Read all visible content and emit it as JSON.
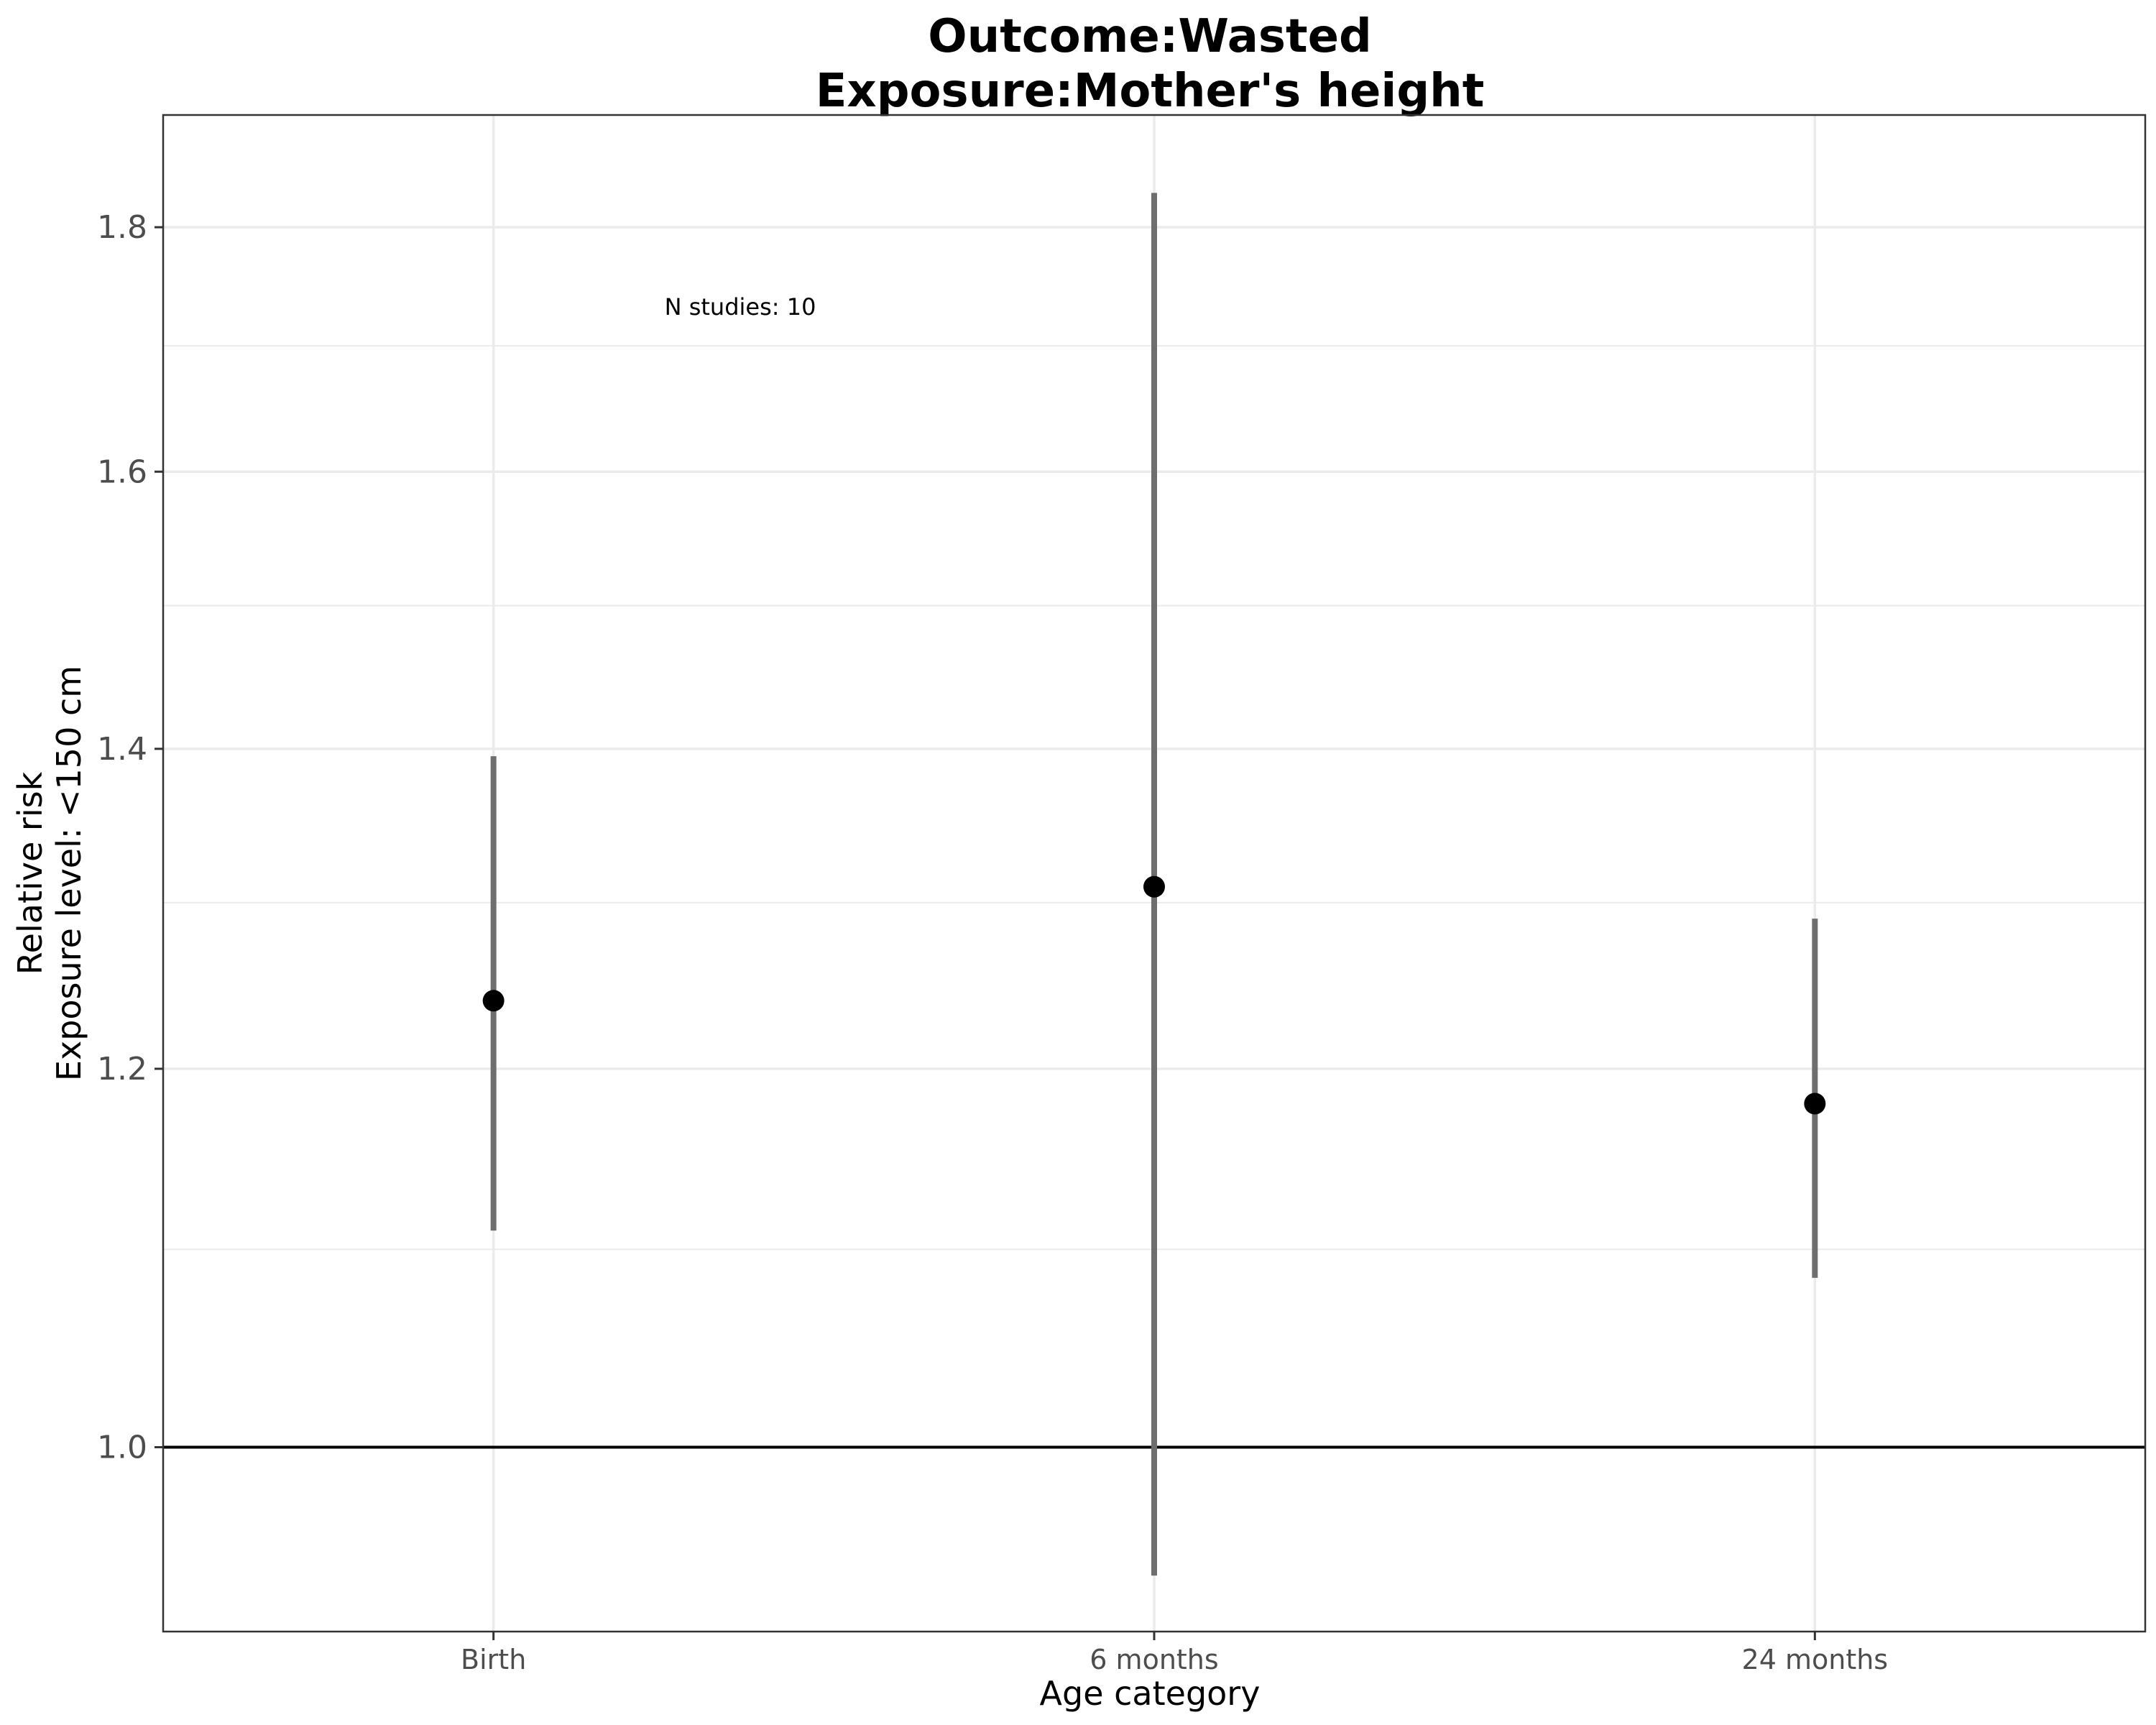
{
  "chart_data": {
    "type": "scatter",
    "title": "Outcome:Wasted",
    "subtitle": "Exposure:Mother's height",
    "xlabel": "Age category",
    "ylabel_line1": "Relative risk",
    "ylabel_line2": "Exposure level: <150 cm",
    "categories": [
      "Birth",
      "6 months",
      "24 months"
    ],
    "series": [
      {
        "values": [
          1.24,
          1.31,
          1.18
        ],
        "lower": [
          1.11,
          0.94,
          1.085
        ],
        "upper": [
          1.395,
          1.83,
          1.29
        ]
      }
    ],
    "y_scale": "log",
    "ylim": [
      0.915,
      1.9
    ],
    "yticks": [
      1.0,
      1.2,
      1.4,
      1.6,
      1.8
    ],
    "ytick_labels": [
      "1.0",
      "1.2",
      "1.4",
      "1.6",
      "1.8"
    ],
    "reference_line": 1.0,
    "annotation": "N studies: 10",
    "grid": true,
    "colors": {
      "point": "#000000",
      "interval": "#6e6e6e",
      "grid": "#ebebeb",
      "reference": "#000000"
    }
  }
}
